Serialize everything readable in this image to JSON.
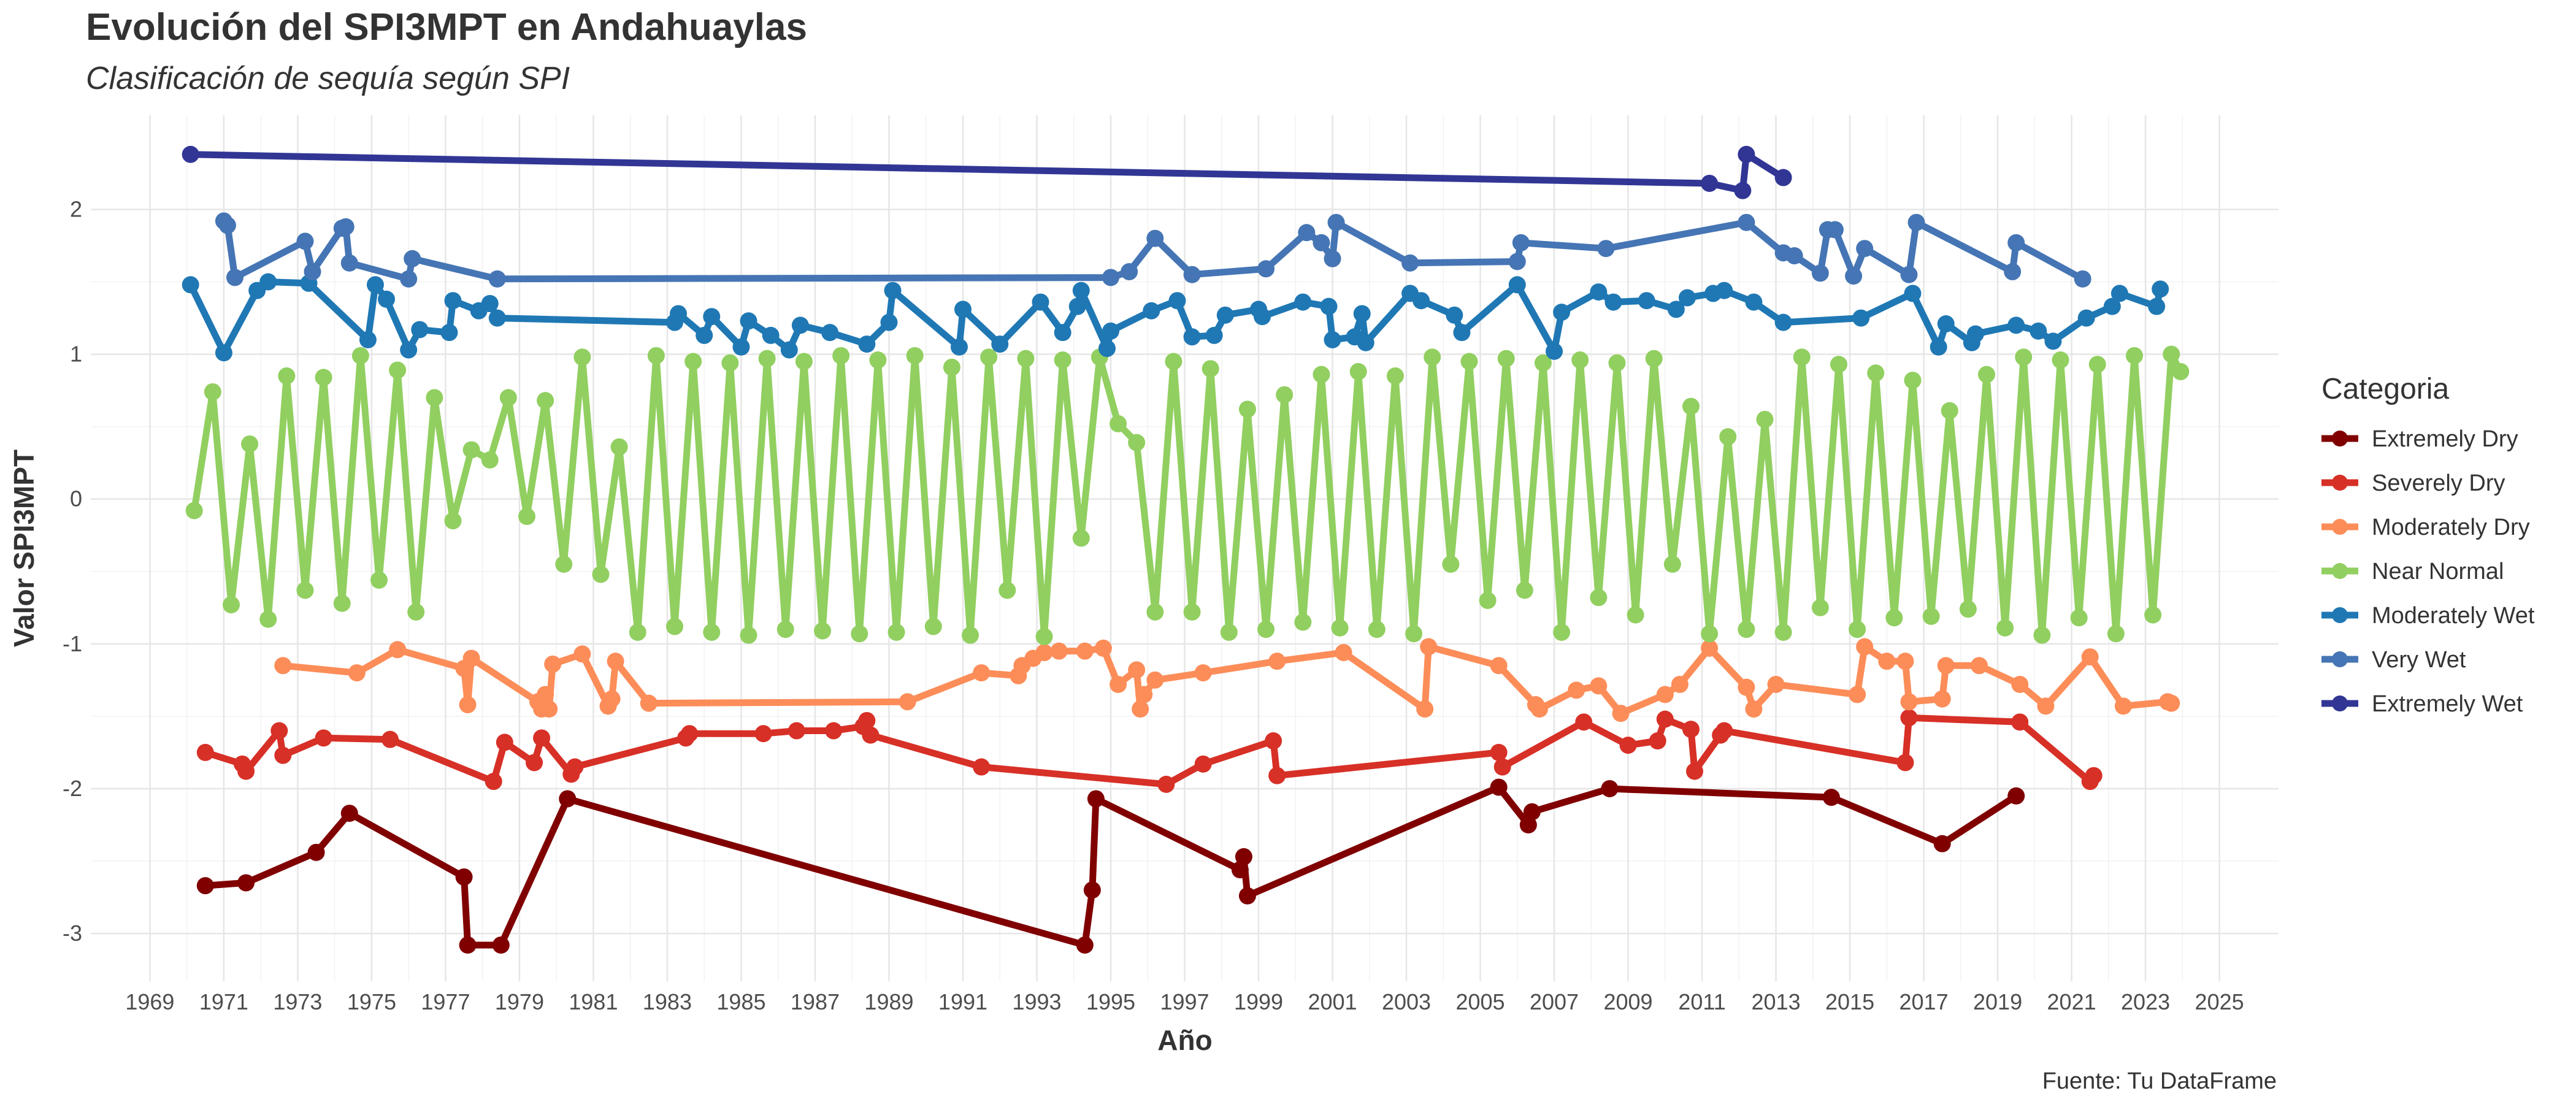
{
  "chart_data": {
    "type": "line",
    "title": "Evolución del SPI3MPT en Andahuaylas",
    "subtitle": "Clasificación de sequía según SPI",
    "xlabel": "Año",
    "ylabel": "Valor SPI3MPT",
    "caption": "Fuente: Tu DataFrame",
    "legend_title": "Categoria",
    "legend": "right",
    "grid": true,
    "xlim": [
      1967.4,
      2026.6
    ],
    "ylim": [
      -3.33,
      2.65
    ],
    "xticks": [
      1969,
      1971,
      1973,
      1975,
      1977,
      1979,
      1981,
      1983,
      1985,
      1987,
      1989,
      1991,
      1993,
      1995,
      1997,
      1999,
      2001,
      2003,
      2005,
      2007,
      2009,
      2011,
      2013,
      2015,
      2017,
      2019,
      2021,
      2023,
      2025
    ],
    "yticks": [
      -3,
      -2,
      -1,
      0,
      1,
      2
    ],
    "series": [
      {
        "name": "Extremely Dry",
        "color": "#800000",
        "x": [
          1970.5,
          1971.6,
          1973.5,
          1974.4,
          1977.5,
          1977.6,
          1978.5,
          1980.3,
          1994.3,
          1994.5,
          1994.6,
          1998.5,
          1998.6,
          1998.7,
          2005.5,
          2006.3,
          2006.4,
          2008.5,
          2014.5,
          2017.5,
          2019.5
        ],
        "values": [
          -2.67,
          -2.65,
          -2.44,
          -2.17,
          -2.61,
          -3.08,
          -3.08,
          -2.07,
          -3.08,
          -2.7,
          -2.07,
          -2.56,
          -2.47,
          -2.74,
          -1.99,
          -2.25,
          -2.16,
          -2.0,
          -2.06,
          -2.38,
          -2.05
        ]
      },
      {
        "name": "Severely Dry",
        "color": "#d73027",
        "x": [
          1970.5,
          1971.5,
          1971.6,
          1972.5,
          1972.6,
          1973.7,
          1975.5,
          1978.3,
          1978.6,
          1979.4,
          1979.6,
          1980.4,
          1980.5,
          1983.5,
          1983.6,
          1985.6,
          1986.5,
          1987.5,
          1988.3,
          1988.4,
          1988.5,
          1991.5,
          1996.5,
          1997.5,
          1999.4,
          1999.5,
          2005.5,
          2005.6,
          2007.8,
          2009.0,
          2009.8,
          2010.0,
          2010.7,
          2010.8,
          2011.5,
          2011.6,
          2016.5,
          2016.6,
          2019.6,
          2021.5,
          2021.6
        ],
        "values": [
          -1.75,
          -1.83,
          -1.88,
          -1.6,
          -1.77,
          -1.65,
          -1.66,
          -1.95,
          -1.68,
          -1.82,
          -1.65,
          -1.9,
          -1.85,
          -1.65,
          -1.62,
          -1.62,
          -1.6,
          -1.6,
          -1.57,
          -1.53,
          -1.63,
          -1.85,
          -1.97,
          -1.83,
          -1.67,
          -1.91,
          -1.75,
          -1.85,
          -1.54,
          -1.7,
          -1.67,
          -1.52,
          -1.59,
          -1.88,
          -1.63,
          -1.6,
          -1.82,
          -1.51,
          -1.54,
          -1.95,
          -1.91
        ]
      },
      {
        "name": "Moderately Dry",
        "color": "#fc8d59",
        "x": [
          1972.6,
          1974.6,
          1975.7,
          1977.5,
          1977.6,
          1977.7,
          1979.5,
          1979.6,
          1979.7,
          1979.8,
          1979.9,
          1980.7,
          1981.4,
          1981.5,
          1981.6,
          1982.5,
          1989.5,
          1991.5,
          1992.5,
          1992.6,
          1992.9,
          1993.2,
          1993.6,
          1994.3,
          1994.8,
          1995.2,
          1995.7,
          1995.8,
          1995.9,
          1996.2,
          1997.5,
          1999.5,
          2001.3,
          2003.5,
          2003.6,
          2005.5,
          2006.5,
          2006.6,
          2007.6,
          2008.2,
          2008.8,
          2010.0,
          2010.4,
          2011.2,
          2012.2,
          2012.4,
          2013.0,
          2015.2,
          2015.4,
          2016.0,
          2016.5,
          2016.6,
          2017.5,
          2017.6,
          2018.5,
          2019.6,
          2020.3,
          2021.5,
          2022.4,
          2023.6,
          2023.7
        ],
        "values": [
          -1.15,
          -1.2,
          -1.04,
          -1.17,
          -1.42,
          -1.1,
          -1.4,
          -1.45,
          -1.35,
          -1.45,
          -1.14,
          -1.07,
          -1.43,
          -1.38,
          -1.12,
          -1.41,
          -1.4,
          -1.2,
          -1.22,
          -1.15,
          -1.1,
          -1.06,
          -1.05,
          -1.05,
          -1.03,
          -1.28,
          -1.18,
          -1.45,
          -1.35,
          -1.25,
          -1.2,
          -1.12,
          -1.06,
          -1.45,
          -1.02,
          -1.15,
          -1.42,
          -1.45,
          -1.32,
          -1.29,
          -1.48,
          -1.35,
          -1.28,
          -1.03,
          -1.3,
          -1.45,
          -1.28,
          -1.35,
          -1.02,
          -1.12,
          -1.12,
          -1.4,
          -1.38,
          -1.15,
          -1.15,
          -1.28,
          -1.43,
          -1.09,
          -1.43,
          -1.4,
          -1.41
        ]
      },
      {
        "name": "Near Normal",
        "color": "#91cf60",
        "x": [
          1970.2,
          1970.7,
          1971.2,
          1971.7,
          1972.2,
          1972.7,
          1973.2,
          1973.7,
          1974.2,
          1974.7,
          1975.2,
          1975.7,
          1976.2,
          1976.7,
          1977.2,
          1977.7,
          1978.2,
          1978.7,
          1979.2,
          1979.7,
          1980.2,
          1980.7,
          1981.2,
          1981.7,
          1982.2,
          1982.7,
          1983.2,
          1983.7,
          1984.2,
          1984.7,
          1985.2,
          1985.7,
          1986.2,
          1986.7,
          1987.2,
          1987.7,
          1988.2,
          1988.7,
          1989.2,
          1989.7,
          1990.2,
          1990.7,
          1991.2,
          1991.7,
          1992.2,
          1992.7,
          1993.2,
          1993.7,
          1994.2,
          1994.7,
          1995.2,
          1995.7,
          1996.2,
          1996.7,
          1997.2,
          1997.7,
          1998.2,
          1998.7,
          1999.2,
          1999.7,
          2000.2,
          2000.7,
          2001.2,
          2001.7,
          2002.2,
          2002.7,
          2003.2,
          2003.7,
          2004.2,
          2004.7,
          2005.2,
          2005.7,
          2006.2,
          2006.7,
          2007.2,
          2007.7,
          2008.2,
          2008.7,
          2009.2,
          2009.7,
          2010.2,
          2010.7,
          2011.2,
          2011.7,
          2012.2,
          2012.7,
          2013.2,
          2013.7,
          2014.2,
          2014.7,
          2015.2,
          2015.7,
          2016.2,
          2016.7,
          2017.2,
          2017.7,
          2018.2,
          2018.7,
          2019.2,
          2019.7,
          2020.2,
          2020.7,
          2021.2,
          2021.7,
          2022.2,
          2022.7,
          2023.2,
          2023.7,
          2023.95
        ],
        "values": [
          -0.08,
          0.74,
          -0.73,
          0.38,
          -0.83,
          0.85,
          -0.63,
          0.84,
          -0.72,
          0.99,
          -0.56,
          0.89,
          -0.78,
          0.7,
          -0.15,
          0.34,
          0.27,
          0.7,
          -0.12,
          0.68,
          -0.45,
          0.98,
          -0.52,
          0.36,
          -0.92,
          0.99,
          -0.88,
          0.95,
          -0.92,
          0.94,
          -0.94,
          0.97,
          -0.9,
          0.95,
          -0.91,
          0.99,
          -0.93,
          0.96,
          -0.92,
          0.99,
          -0.88,
          0.91,
          -0.94,
          0.98,
          -0.63,
          0.97,
          -0.95,
          0.96,
          -0.27,
          0.98,
          0.52,
          0.39,
          -0.78,
          0.95,
          -0.78,
          0.9,
          -0.92,
          0.62,
          -0.9,
          0.72,
          -0.85,
          0.86,
          -0.89,
          0.88,
          -0.9,
          0.85,
          -0.93,
          0.98,
          -0.45,
          0.95,
          -0.7,
          0.97,
          -0.63,
          0.94,
          -0.92,
          0.96,
          -0.68,
          0.94,
          -0.8,
          0.97,
          -0.45,
          0.64,
          -0.93,
          0.43,
          -0.9,
          0.55,
          -0.92,
          0.98,
          -0.75,
          0.93,
          -0.9,
          0.87,
          -0.82,
          0.82,
          -0.81,
          0.61,
          -0.76,
          0.86,
          -0.89,
          0.98,
          -0.94,
          0.96,
          -0.82,
          0.93,
          -0.93,
          0.99,
          -0.8,
          1.0,
          0.88
        ]
      },
      {
        "name": "Moderately Wet",
        "color": "#1f78b4",
        "x": [
          1970.1,
          1971.0,
          1971.9,
          1972.2,
          1973.3,
          1974.9,
          1975.1,
          1975.4,
          1976.0,
          1976.3,
          1977.1,
          1977.2,
          1977.9,
          1978.2,
          1978.4,
          1983.2,
          1983.3,
          1984.0,
          1984.2,
          1985.0,
          1985.2,
          1985.8,
          1986.3,
          1986.6,
          1987.4,
          1988.4,
          1989.0,
          1989.1,
          1990.9,
          1991.0,
          1992.0,
          1993.1,
          1993.7,
          1994.1,
          1994.2,
          1994.9,
          1995.0,
          1996.1,
          1996.8,
          1997.2,
          1997.8,
          1998.1,
          1999.0,
          1999.1,
          2000.2,
          2000.9,
          2001.0,
          2001.6,
          2001.8,
          2001.9,
          2003.1,
          2003.4,
          2004.3,
          2004.5,
          2006.0,
          2007.0,
          2007.2,
          2008.2,
          2008.6,
          2009.5,
          2010.3,
          2010.6,
          2011.3,
          2011.6,
          2012.4,
          2013.2,
          2015.3,
          2016.7,
          2017.4,
          2017.6,
          2018.3,
          2018.4,
          2019.5,
          2020.1,
          2020.5,
          2021.4,
          2022.1,
          2022.3,
          2023.3,
          2023.4
        ],
        "values": [
          1.48,
          1.01,
          1.44,
          1.5,
          1.49,
          1.1,
          1.48,
          1.38,
          1.03,
          1.17,
          1.15,
          1.37,
          1.3,
          1.35,
          1.25,
          1.22,
          1.28,
          1.13,
          1.26,
          1.05,
          1.23,
          1.13,
          1.03,
          1.2,
          1.15,
          1.07,
          1.22,
          1.44,
          1.05,
          1.31,
          1.07,
          1.36,
          1.15,
          1.33,
          1.44,
          1.04,
          1.16,
          1.3,
          1.37,
          1.12,
          1.13,
          1.27,
          1.31,
          1.26,
          1.36,
          1.33,
          1.1,
          1.12,
          1.28,
          1.08,
          1.42,
          1.37,
          1.27,
          1.15,
          1.48,
          1.02,
          1.29,
          1.43,
          1.36,
          1.37,
          1.31,
          1.39,
          1.42,
          1.44,
          1.36,
          1.22,
          1.25,
          1.42,
          1.05,
          1.21,
          1.08,
          1.14,
          1.2,
          1.16,
          1.09,
          1.25,
          1.33,
          1.42,
          1.33,
          1.45
        ]
      },
      {
        "name": "Very Wet",
        "color": "#4575b4",
        "x": [
          1971.0,
          1971.1,
          1971.3,
          1973.2,
          1973.4,
          1974.2,
          1974.3,
          1974.4,
          1976.0,
          1976.1,
          1978.4,
          1995.0,
          1995.5,
          1996.2,
          1997.2,
          1999.2,
          2000.3,
          2000.7,
          2001.0,
          2001.1,
          2003.1,
          2006.0,
          2006.1,
          2008.4,
          2012.2,
          2013.2,
          2013.5,
          2014.2,
          2014.4,
          2014.6,
          2015.1,
          2015.4,
          2016.6,
          2016.8,
          2019.4,
          2019.5,
          2021.3
        ],
        "values": [
          1.92,
          1.89,
          1.53,
          1.78,
          1.57,
          1.87,
          1.88,
          1.63,
          1.52,
          1.66,
          1.52,
          1.53,
          1.57,
          1.8,
          1.55,
          1.59,
          1.84,
          1.77,
          1.66,
          1.91,
          1.63,
          1.64,
          1.77,
          1.73,
          1.91,
          1.7,
          1.68,
          1.56,
          1.86,
          1.86,
          1.54,
          1.73,
          1.55,
          1.91,
          1.57,
          1.77,
          1.52
        ]
      },
      {
        "name": "Extremely Wet",
        "color": "#313695",
        "x": [
          1970.1,
          2011.2,
          2012.1,
          2012.2,
          2013.2
        ],
        "values": [
          2.38,
          2.18,
          2.13,
          2.38,
          2.22
        ]
      }
    ]
  }
}
